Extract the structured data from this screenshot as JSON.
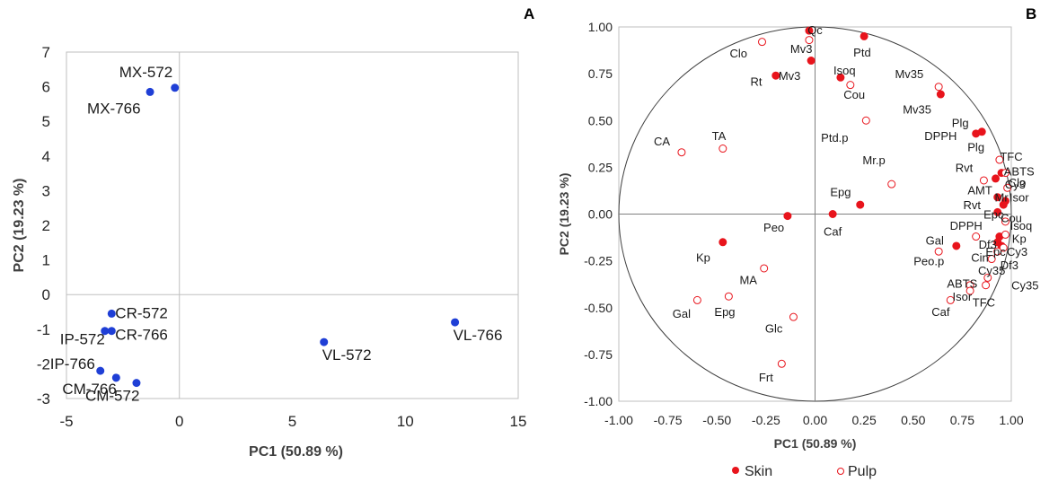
{
  "panel_labels": {
    "a": "A",
    "b": "B"
  },
  "chart_data": [
    {
      "type": "scatter",
      "panel": "A",
      "xlabel": "PC1 (50.89 %)",
      "ylabel": "PC2 (19.23 %)",
      "xlim": [
        -5,
        15
      ],
      "ylim": [
        -3,
        7
      ],
      "xticks": [
        -5,
        0,
        5,
        10,
        15
      ],
      "yticks": [
        -3,
        -2,
        -1,
        0,
        1,
        2,
        3,
        4,
        5,
        6,
        7
      ],
      "grid": false,
      "colors": {
        "points": "#1f3fd6",
        "axis": "#bfbfbf",
        "frame": "#bfbfbf"
      },
      "points": [
        {
          "label": "MX-572",
          "x": -0.2,
          "y": 5.97,
          "label_pos": "above-left"
        },
        {
          "label": "MX-766",
          "x": -1.3,
          "y": 5.85,
          "label_pos": "below-left"
        },
        {
          "label": "VL-766",
          "x": 12.2,
          "y": -0.8,
          "label_pos": "below-right"
        },
        {
          "label": "VL-572",
          "x": 6.4,
          "y": -1.37,
          "label_pos": "below-right"
        },
        {
          "label": "CR-572",
          "x": -3.0,
          "y": -0.55,
          "label_pos": "right"
        },
        {
          "label": "CR-766",
          "x": -3.0,
          "y": -1.05,
          "label_pos": "right"
        },
        {
          "label": "IP-572",
          "x": -3.3,
          "y": -1.05,
          "label_pos": "below-left"
        },
        {
          "label": "IP-766",
          "x": -3.5,
          "y": -2.2,
          "label_pos": "above-left"
        },
        {
          "label": "CM-766",
          "x": -2.8,
          "y": -2.4,
          "label_pos": "below-left"
        },
        {
          "label": "CM-572",
          "x": -1.9,
          "y": -2.55,
          "label_pos": "below-left"
        }
      ]
    },
    {
      "type": "scatter",
      "panel": "B",
      "xlabel": "PC1 (50.89 %)",
      "ylabel": "PC2 (19.23 %)",
      "xlim": [
        -1.0,
        1.0
      ],
      "ylim": [
        -1.0,
        1.0
      ],
      "xticks": [
        "-1.00",
        "-0.75",
        "-0.50",
        "-0.25",
        "0.00",
        "0.25",
        "0.50",
        "0.75",
        "1.00"
      ],
      "yticks": [
        "-1.00",
        "-0.75",
        "-0.50",
        "-0.25",
        "0.00",
        "0.25",
        "0.50",
        "0.75",
        "1.00"
      ],
      "grid": false,
      "unit_circle": true,
      "legend": {
        "placement": "bottom",
        "entries": [
          "Skin",
          "Pulp"
        ]
      },
      "colors": {
        "skin": "#e8141c",
        "pulp": "#e8141c",
        "axis": "#808080",
        "frame": "#bfbfbf"
      },
      "series": [
        {
          "name": "Skin",
          "style": "filled",
          "points": [
            {
              "label": "Qc",
              "x": -0.03,
              "y": 0.98
            },
            {
              "label": "Ptd",
              "x": 0.25,
              "y": 0.95
            },
            {
              "label": "Mv3",
              "x": -0.02,
              "y": 0.82
            },
            {
              "label": "Mv3",
              "x": -0.2,
              "y": 0.74
            },
            {
              "label": "Isoq",
              "x": 0.13,
              "y": 0.73
            },
            {
              "label": "Mv35",
              "x": 0.64,
              "y": 0.64
            },
            {
              "label": "Plg",
              "x": 0.85,
              "y": 0.44
            },
            {
              "label": "Plg",
              "x": 0.82,
              "y": 0.43
            },
            {
              "label": "ABTS",
              "x": 0.95,
              "y": 0.22
            },
            {
              "label": "Rvt",
              "x": 0.92,
              "y": 0.19
            },
            {
              "label": "AMT",
              "x": 0.93,
              "y": 0.09
            },
            {
              "label": "Isor",
              "x": 0.97,
              "y": 0.07
            },
            {
              "label": "Cou",
              "x": 0.96,
              "y": 0.05
            },
            {
              "label": "Epc",
              "x": 0.93,
              "y": 0.01
            },
            {
              "label": "Epg",
              "x": 0.23,
              "y": 0.05
            },
            {
              "label": "Caf",
              "x": 0.09,
              "y": 0.0
            },
            {
              "label": "Peo",
              "x": -0.14,
              "y": -0.01
            },
            {
              "label": "DPPH",
              "x": 0.94,
              "y": -0.12
            },
            {
              "label": "Gal",
              "x": 0.72,
              "y": -0.17
            },
            {
              "label": "Df3",
              "x": 0.93,
              "y": -0.15
            },
            {
              "label": "Cin",
              "x": 0.95,
              "y": -0.17
            },
            {
              "label": "Kp",
              "x": -0.47,
              "y": -0.15
            }
          ]
        },
        {
          "name": "Pulp",
          "style": "open",
          "points": [
            {
              "label": "Clo",
              "x": -0.27,
              "y": 0.92
            },
            {
              "label": "Mv3",
              "x": -0.03,
              "y": 0.93
            },
            {
              "label": "Cou",
              "x": 0.18,
              "y": 0.69
            },
            {
              "label": "Mv35",
              "x": 0.63,
              "y": 0.68
            },
            {
              "label": "Ptd.p",
              "x": 0.26,
              "y": 0.5
            },
            {
              "label": "TA",
              "x": -0.47,
              "y": 0.35
            },
            {
              "label": "CA",
              "x": -0.68,
              "y": 0.33
            },
            {
              "label": "TFC",
              "x": 0.94,
              "y": 0.29
            },
            {
              "label": "Clo",
              "x": 0.97,
              "y": 0.22
            },
            {
              "label": "Rvt",
              "x": 0.86,
              "y": 0.18
            },
            {
              "label": "Cy3",
              "x": 0.98,
              "y": 0.14
            },
            {
              "label": "Mr.p",
              "x": 0.39,
              "y": 0.16
            },
            {
              "label": "Isoq",
              "x": 0.97,
              "y": -0.04
            },
            {
              "label": "Kp",
              "x": 0.97,
              "y": -0.11
            },
            {
              "label": "Cy3",
              "x": 0.96,
              "y": -0.18
            },
            {
              "label": "Epc",
              "x": 0.93,
              "y": -0.2
            },
            {
              "label": "Df3",
              "x": 0.9,
              "y": -0.24
            },
            {
              "label": "Cy35",
              "x": 0.88,
              "y": -0.34
            },
            {
              "label": "Peo.p",
              "x": 0.63,
              "y": -0.2
            },
            {
              "label": "DPPH",
              "x": 0.82,
              "y": -0.12
            },
            {
              "label": "ABTS",
              "x": 0.79,
              "y": -0.38
            },
            {
              "label": "Isor",
              "x": 0.79,
              "y": -0.41
            },
            {
              "label": "TFC",
              "x": 0.87,
              "y": -0.38
            },
            {
              "label": "Caf",
              "x": 0.69,
              "y": -0.46
            },
            {
              "label": "MA",
              "x": -0.26,
              "y": -0.29
            },
            {
              "label": "Epg",
              "x": -0.44,
              "y": -0.44
            },
            {
              "label": "Gal",
              "x": -0.6,
              "y": -0.46
            },
            {
              "label": "Glc",
              "x": -0.11,
              "y": -0.55
            },
            {
              "label": "Frt",
              "x": -0.17,
              "y": -0.8
            }
          ]
        }
      ],
      "labels": [
        {
          "text": "Qc",
          "x": 0.0,
          "y": 0.985
        },
        {
          "text": "Clo",
          "x": -0.39,
          "y": 0.86
        },
        {
          "text": "Mv3",
          "x": -0.07,
          "y": 0.885
        },
        {
          "text": "Ptd",
          "x": 0.24,
          "y": 0.865
        },
        {
          "text": "Isoq",
          "x": 0.15,
          "y": 0.77
        },
        {
          "text": "Mv35",
          "x": 0.48,
          "y": 0.75
        },
        {
          "text": "Rt",
          "x": -0.3,
          "y": 0.71
        },
        {
          "text": "Mv3",
          "x": -0.13,
          "y": 0.74
        },
        {
          "text": "Cou",
          "x": 0.2,
          "y": 0.64
        },
        {
          "text": "Mv35",
          "x": 0.52,
          "y": 0.56
        },
        {
          "text": "Plg",
          "x": 0.74,
          "y": 0.49
        },
        {
          "text": "DPPH",
          "x": 0.64,
          "y": 0.42
        },
        {
          "text": "Plg",
          "x": 0.82,
          "y": 0.36
        },
        {
          "text": "Ptd.p",
          "x": 0.1,
          "y": 0.41
        },
        {
          "text": "CA",
          "x": -0.78,
          "y": 0.39
        },
        {
          "text": "TA",
          "x": -0.49,
          "y": 0.42
        },
        {
          "text": "TFC",
          "x": 1.0,
          "y": 0.31
        },
        {
          "text": "Rvt",
          "x": 0.76,
          "y": 0.25
        },
        {
          "text": "ABTS",
          "x": 1.04,
          "y": 0.23
        },
        {
          "text": "Clo",
          "x": 1.03,
          "y": 0.17
        },
        {
          "text": "AMT",
          "x": 0.84,
          "y": 0.13
        },
        {
          "text": "Cy3",
          "x": 1.02,
          "y": 0.16
        },
        {
          "text": "Mr",
          "x": 0.95,
          "y": 0.09
        },
        {
          "text": "Isor",
          "x": 1.04,
          "y": 0.09
        },
        {
          "text": "Mr.p",
          "x": 0.3,
          "y": 0.29
        },
        {
          "text": "Rvt",
          "x": 0.8,
          "y": 0.05
        },
        {
          "text": "Epc",
          "x": 0.91,
          "y": 0.0
        },
        {
          "text": "Cou",
          "x": 1.0,
          "y": -0.02
        },
        {
          "text": "Isoq",
          "x": 1.05,
          "y": -0.06
        },
        {
          "text": "Epg",
          "x": 0.13,
          "y": 0.12
        },
        {
          "text": "Caf",
          "x": 0.09,
          "y": -0.09
        },
        {
          "text": "Peo",
          "x": -0.21,
          "y": -0.07
        },
        {
          "text": "DPPH",
          "x": 0.77,
          "y": -0.06
        },
        {
          "text": "Kp",
          "x": 1.04,
          "y": -0.13
        },
        {
          "text": "Gal",
          "x": 0.61,
          "y": -0.14
        },
        {
          "text": "Df3",
          "x": 0.88,
          "y": -0.16
        },
        {
          "text": "Epc",
          "x": 0.92,
          "y": -0.2
        },
        {
          "text": "Cy3",
          "x": 1.03,
          "y": -0.2
        },
        {
          "text": "Cin",
          "x": 0.84,
          "y": -0.23
        },
        {
          "text": "Df3",
          "x": 0.99,
          "y": -0.27
        },
        {
          "text": "Peo.p",
          "x": 0.58,
          "y": -0.25
        },
        {
          "text": "Cy35",
          "x": 0.9,
          "y": -0.3
        },
        {
          "text": "Kp",
          "x": -0.57,
          "y": -0.23
        },
        {
          "text": "ABTS",
          "x": 0.75,
          "y": -0.37
        },
        {
          "text": "Cy35",
          "x": 1.07,
          "y": -0.38
        },
        {
          "text": "Isor",
          "x": 0.75,
          "y": -0.44
        },
        {
          "text": "TFC",
          "x": 0.86,
          "y": -0.47
        },
        {
          "text": "Caf",
          "x": 0.64,
          "y": -0.52
        },
        {
          "text": "MA",
          "x": -0.34,
          "y": -0.35
        },
        {
          "text": "Gal",
          "x": -0.68,
          "y": -0.53
        },
        {
          "text": "Epg",
          "x": -0.46,
          "y": -0.52
        },
        {
          "text": "Glc",
          "x": -0.21,
          "y": -0.61
        },
        {
          "text": "Frt",
          "x": -0.25,
          "y": -0.87
        }
      ]
    }
  ]
}
